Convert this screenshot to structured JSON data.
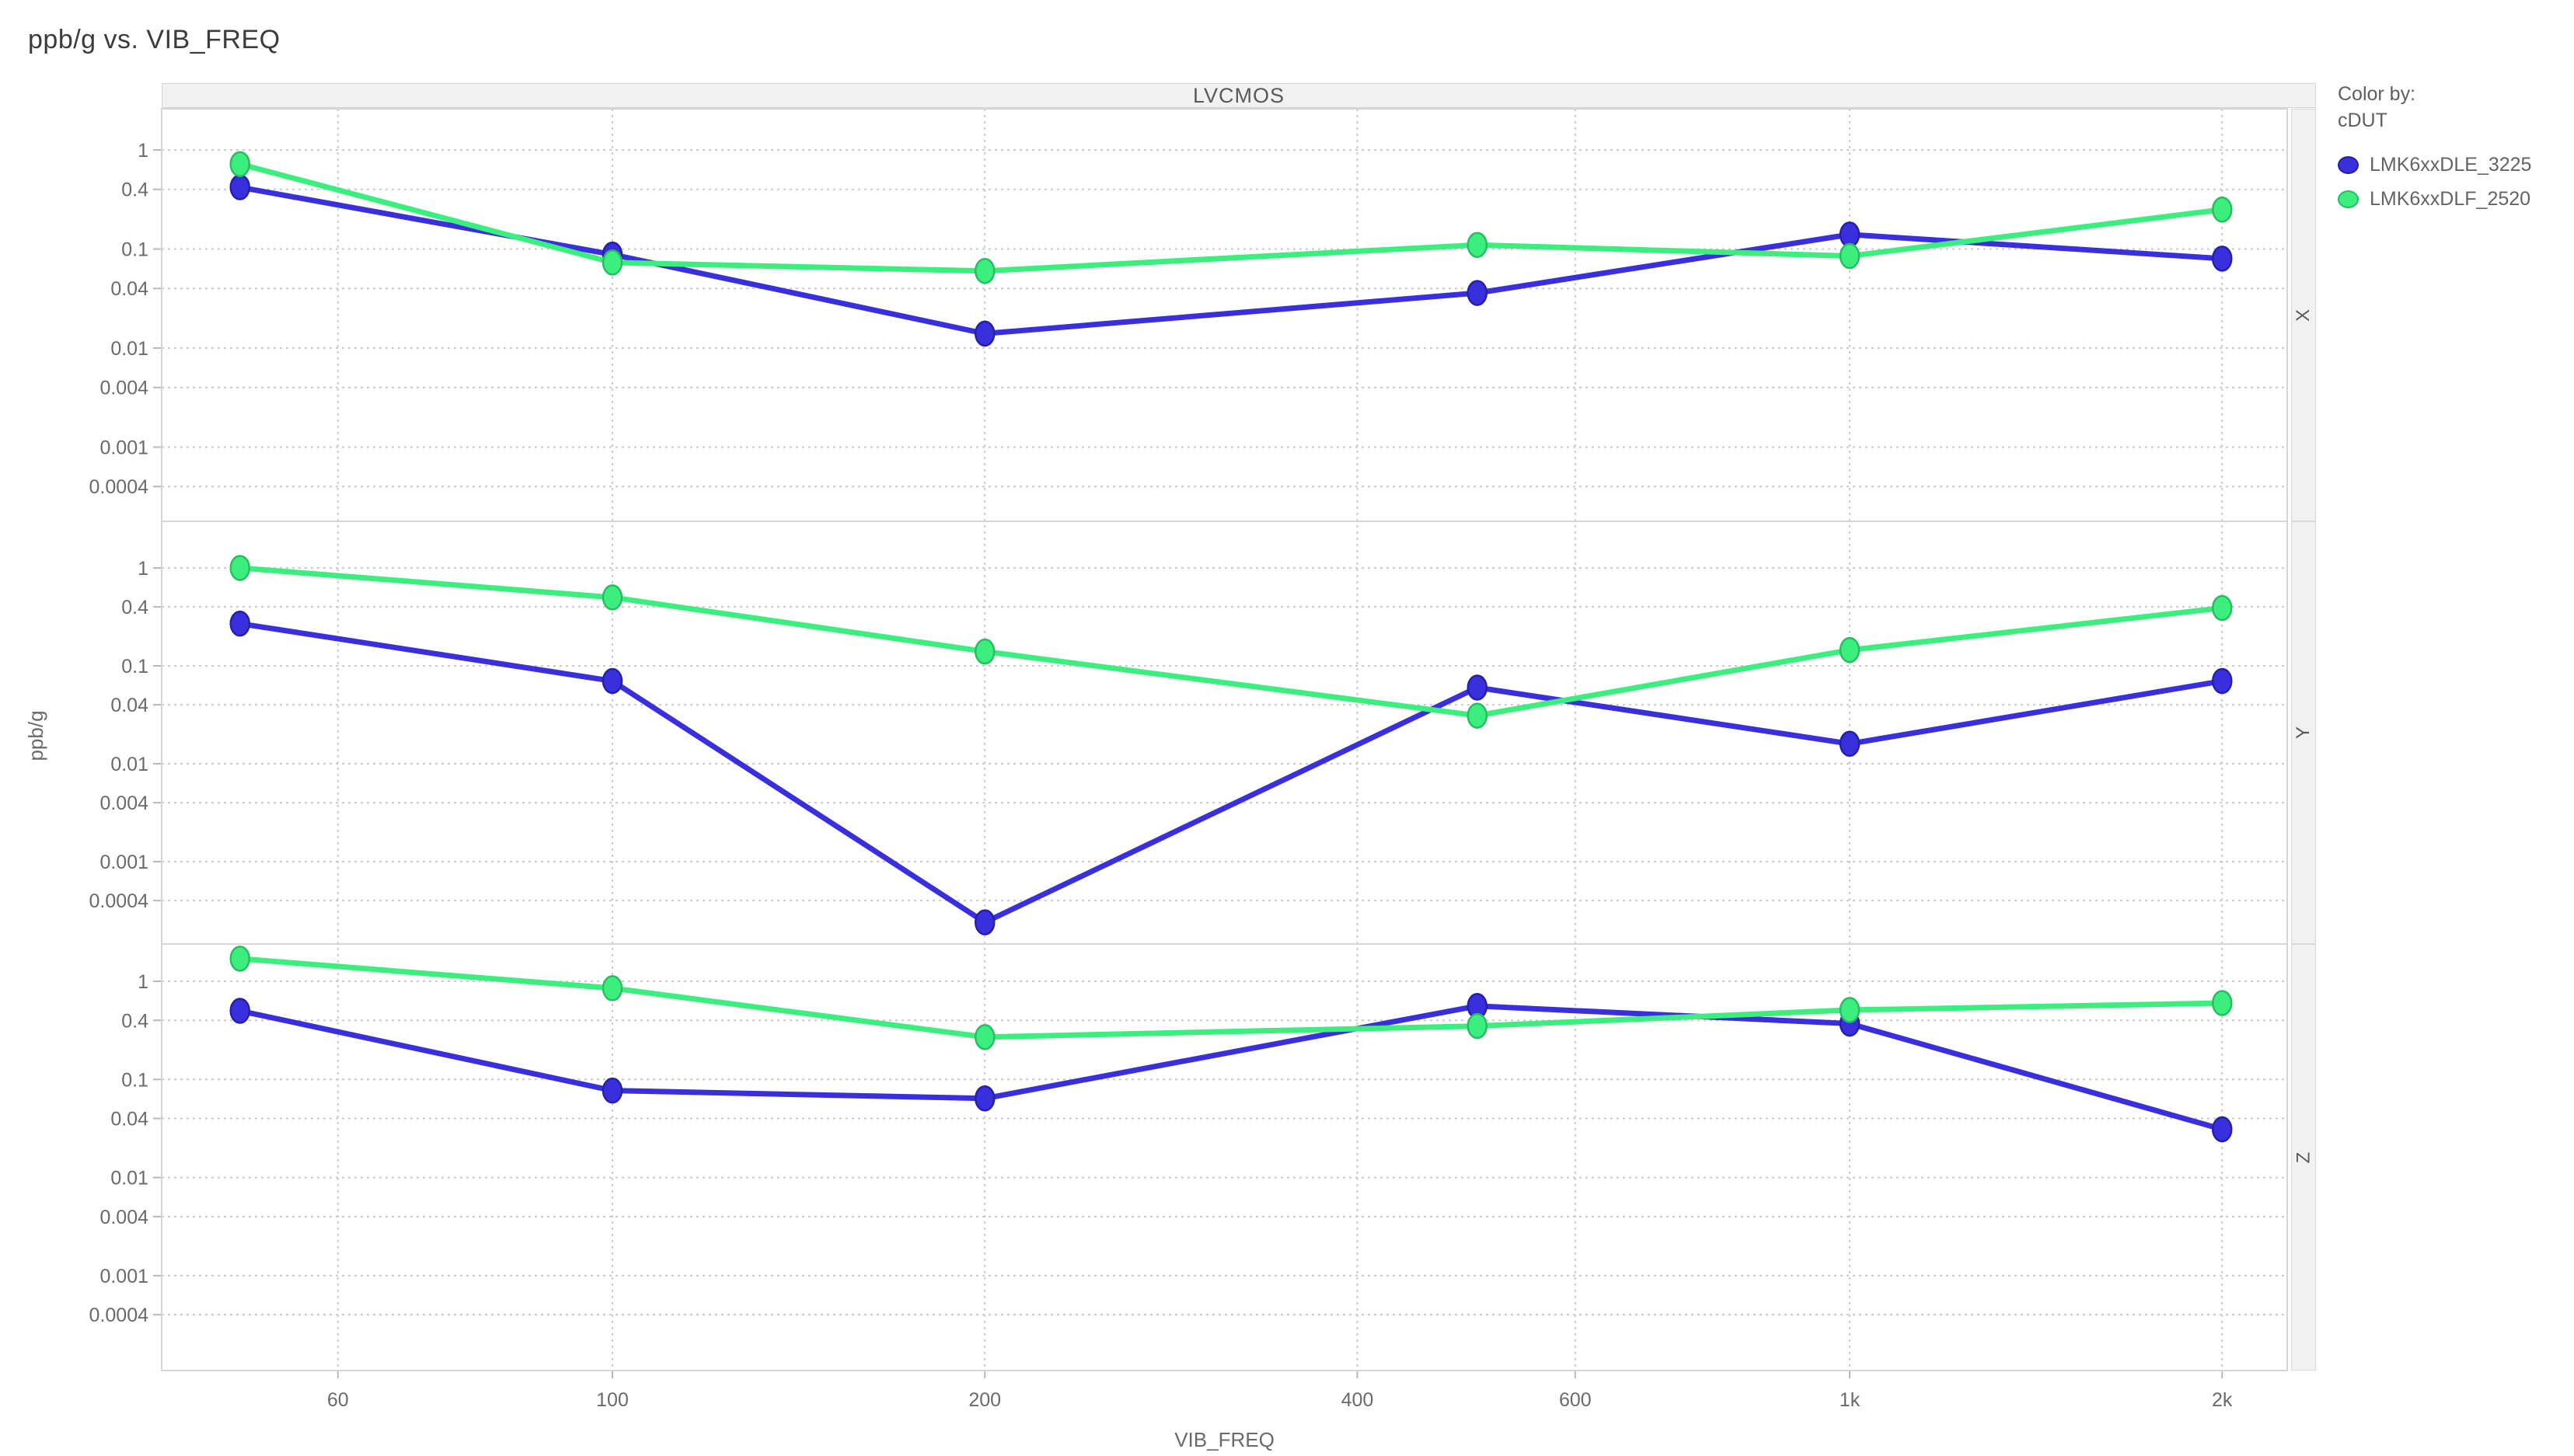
{
  "title": "ppb/g vs. VIB_FREQ",
  "panel_header": "LVCMOS",
  "legend": {
    "color_by_label": "Color by:",
    "column": "cDUT",
    "items": [
      {
        "label": "LMK6xxDLE_3225",
        "color": "#3a2fdc",
        "border": "#2420a8"
      },
      {
        "label": "LMK6xxDLF_2520",
        "color": "#3cee7d",
        "border": "#27bd61"
      }
    ]
  },
  "axes": {
    "x_label": "VIB_FREQ",
    "y_label": "ppb/g"
  },
  "chart_data": {
    "type": "line",
    "title": "ppb/g vs. VIB_FREQ",
    "xlabel": "VIB_FREQ",
    "ylabel": "ppb/g",
    "x_scale": "log",
    "y_scale": "log",
    "grid": true,
    "legend_position": "right",
    "x": [
      50,
      100,
      200,
      500,
      1000,
      2000
    ],
    "x_tick_values": [
      60,
      100,
      200,
      400,
      600,
      1000,
      2000
    ],
    "x_tick_labels": [
      "60",
      "100",
      "200",
      "400",
      "600",
      "1k",
      "2k"
    ],
    "y_tick_values": [
      1,
      0.4,
      0.1,
      0.04,
      0.01,
      0.004,
      0.001,
      0.0004
    ],
    "y_tick_labels": [
      "1",
      "0.4",
      "0.1",
      "0.04",
      "0.01",
      "0.004",
      "0.001",
      "0.0004"
    ],
    "y_range": [
      0.0002,
      2.5
    ],
    "panels": [
      {
        "panel": "X",
        "series": [
          {
            "name": "LMK6xxDLE_3225",
            "values": [
              0.42,
              0.088,
              0.014,
              0.036,
              0.14,
              0.08
            ]
          },
          {
            "name": "LMK6xxDLF_2520",
            "values": [
              0.72,
              0.073,
              0.06,
              0.11,
              0.085,
              0.25
            ]
          }
        ]
      },
      {
        "panel": "Y",
        "series": [
          {
            "name": "LMK6xxDLE_3225",
            "values": [
              0.27,
              0.07,
              0.00024,
              0.06,
              0.016,
              0.07
            ]
          },
          {
            "name": "LMK6xxDLF_2520",
            "values": [
              1.0,
              0.5,
              0.14,
              0.031,
              0.145,
              0.39
            ]
          }
        ]
      },
      {
        "panel": "Z",
        "series": [
          {
            "name": "LMK6xxDLE_3225",
            "values": [
              0.5,
              0.077,
              0.064,
              0.56,
              0.37,
              0.031
            ]
          },
          {
            "name": "LMK6xxDLF_2520",
            "values": [
              1.7,
              0.85,
              0.27,
              0.35,
              0.51,
              0.6
            ]
          }
        ]
      }
    ]
  }
}
